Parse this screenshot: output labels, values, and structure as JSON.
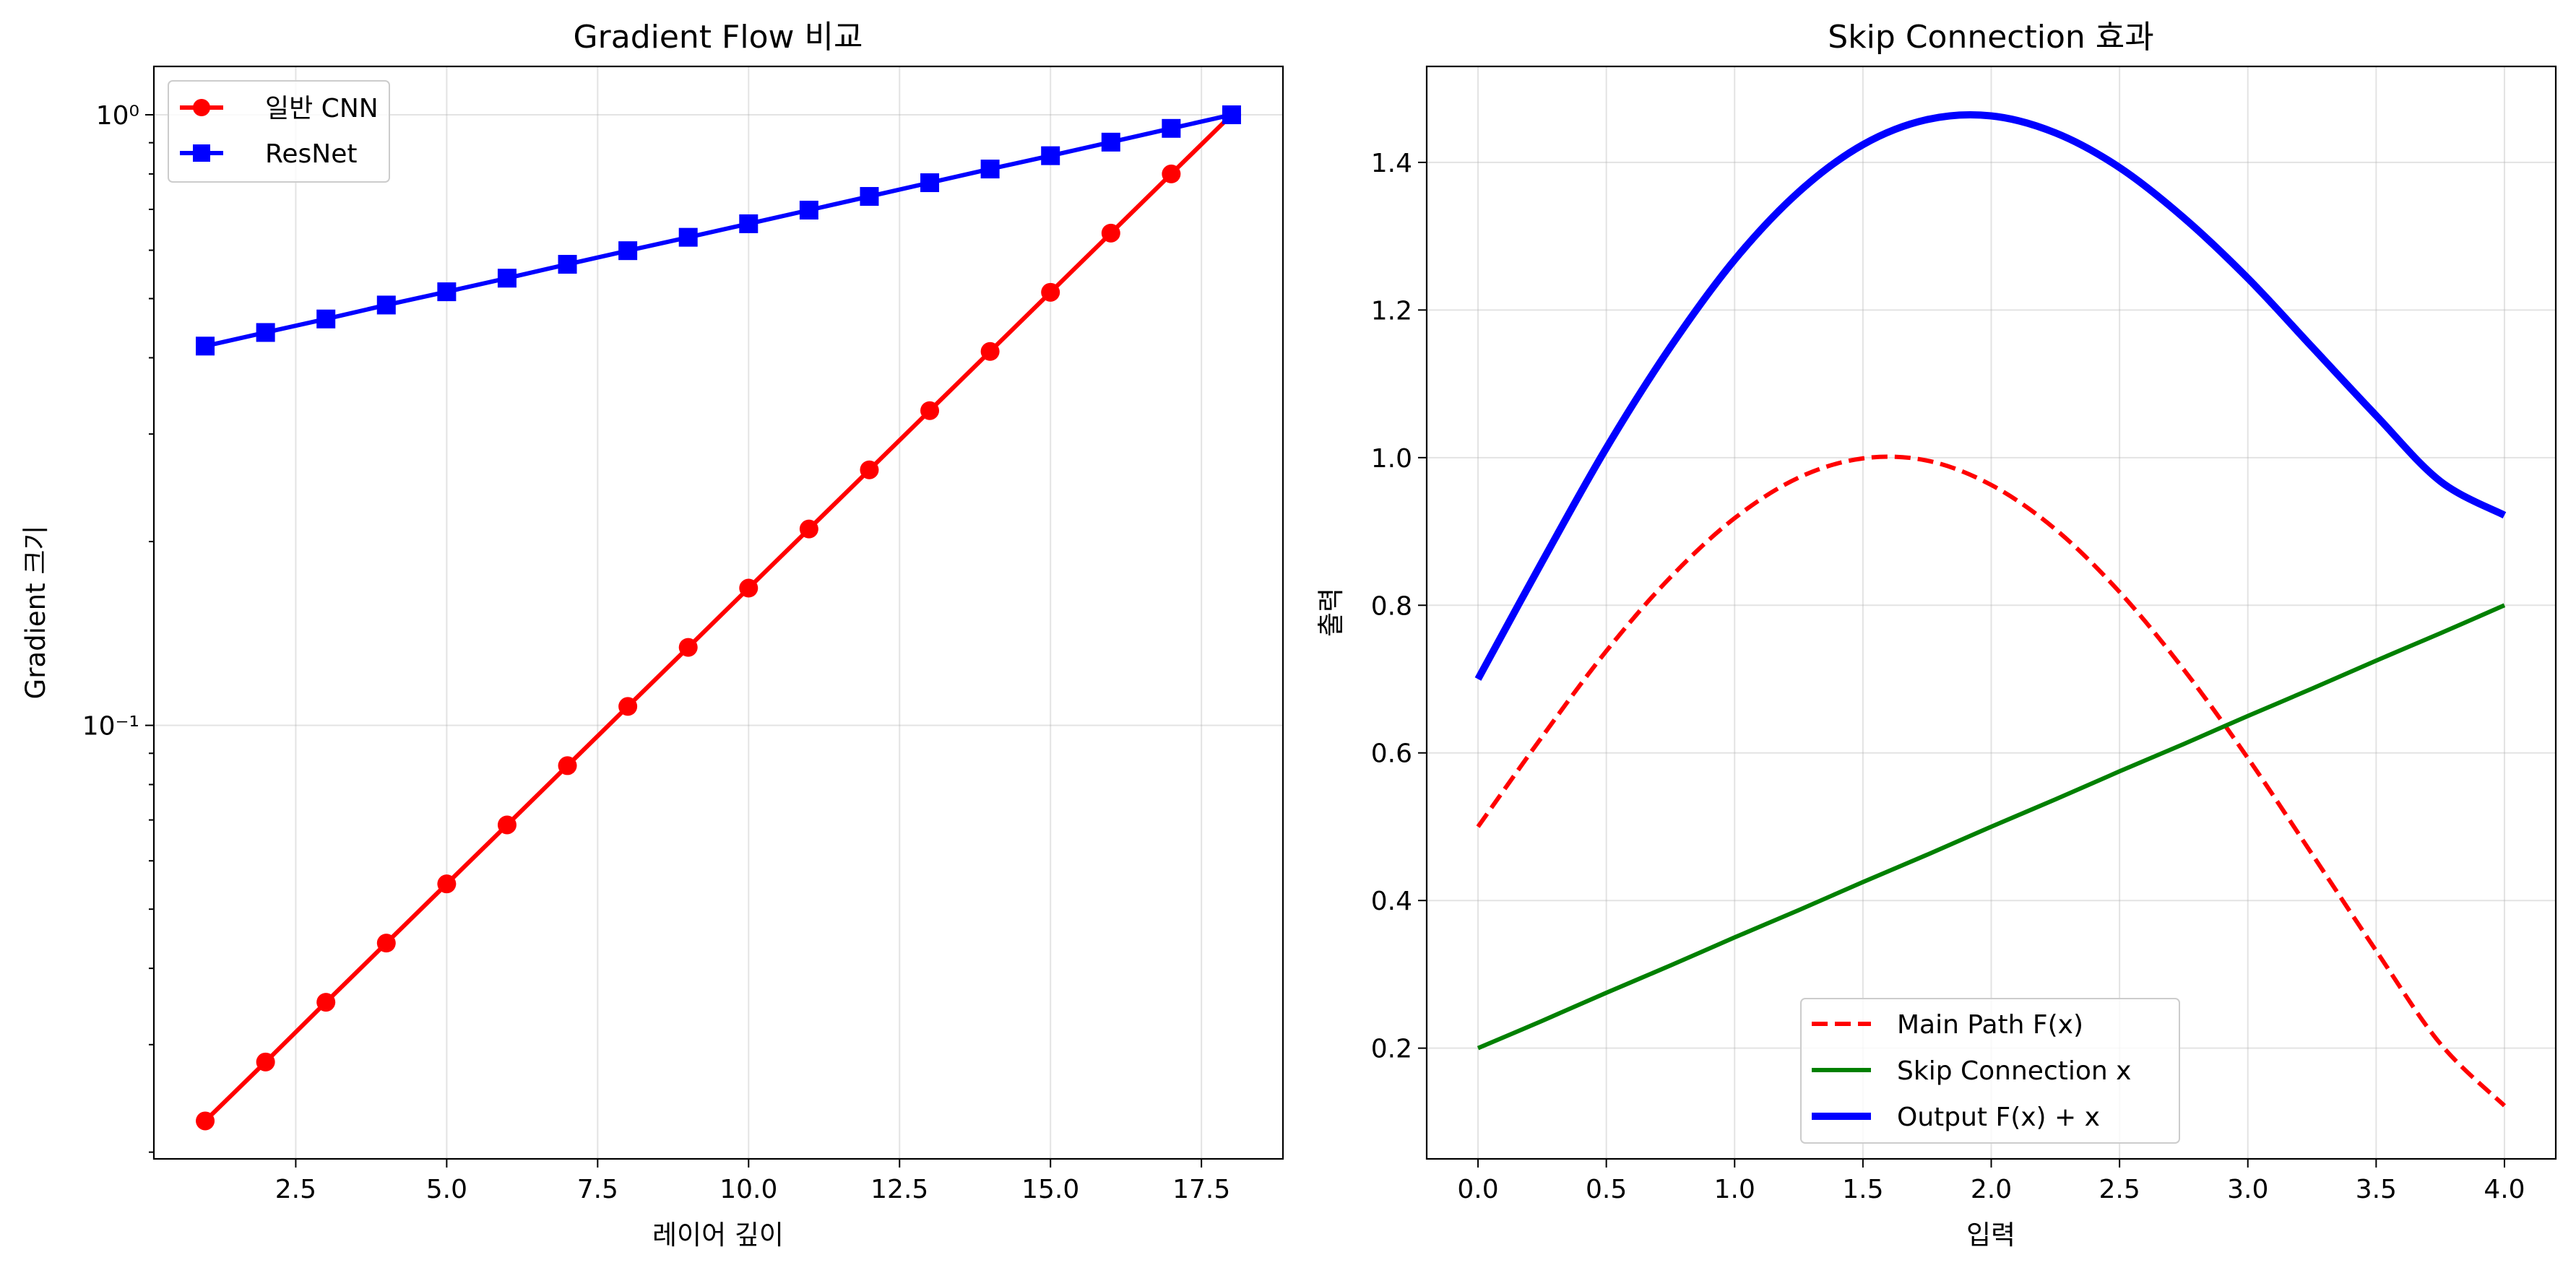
{
  "chart_data": [
    {
      "type": "line",
      "title": "Gradient Flow 비교",
      "xlabel": "레이어 깊이",
      "ylabel": "Gradient 크기",
      "yscale": "log",
      "xlim": [
        0.15,
        18.85
      ],
      "ylim": [
        0.0195,
        1.2
      ],
      "xticks": [
        2.5,
        5.0,
        7.5,
        10.0,
        12.5,
        15.0,
        17.5
      ],
      "xtick_labels": [
        "2.5",
        "5.0",
        "7.5",
        "10.0",
        "12.5",
        "15.0",
        "17.5"
      ],
      "yticks": [
        0.1,
        1.0
      ],
      "ytick_labels": [
        "10⁻¹",
        "10⁰"
      ],
      "grid": true,
      "legend_position": "upper-left",
      "x": [
        1,
        2,
        3,
        4,
        5,
        6,
        7,
        8,
        9,
        10,
        11,
        12,
        13,
        14,
        15,
        16,
        17,
        18
      ],
      "series": [
        {
          "name": "일반 CNN",
          "color": "#ff0000",
          "marker": "circle",
          "values": [
            0.0225,
            0.0281,
            0.0352,
            0.044,
            0.055,
            0.0687,
            0.0859,
            0.1074,
            0.1342,
            0.1678,
            0.2097,
            0.2621,
            0.3277,
            0.4096,
            0.512,
            0.64,
            0.8,
            1.0
          ]
        },
        {
          "name": "ResNet",
          "color": "#0000ff",
          "marker": "square",
          "values": [
            0.418,
            0.44,
            0.463,
            0.488,
            0.513,
            0.54,
            0.569,
            0.599,
            0.63,
            0.663,
            0.698,
            0.735,
            0.774,
            0.815,
            0.857,
            0.902,
            0.95,
            1.0
          ]
        }
      ]
    },
    {
      "type": "line",
      "title": "Skip Connection 효과",
      "xlabel": "입력",
      "ylabel": "출력",
      "xlim": [
        -0.2,
        4.2
      ],
      "ylim": [
        0.05,
        1.53
      ],
      "xticks": [
        0.0,
        0.5,
        1.0,
        1.5,
        2.0,
        2.5,
        3.0,
        3.5,
        4.0
      ],
      "xtick_labels": [
        "0.0",
        "0.5",
        "1.0",
        "1.5",
        "2.0",
        "2.5",
        "3.0",
        "3.5",
        "4.0"
      ],
      "yticks": [
        0.2,
        0.4,
        0.6,
        0.8,
        1.0,
        1.2,
        1.4
      ],
      "ytick_labels": [
        "0.2",
        "0.4",
        "0.6",
        "0.8",
        "1.0",
        "1.2",
        "1.4"
      ],
      "grid": true,
      "legend_position": "lower-center",
      "x": [
        0.0,
        0.25,
        0.5,
        0.75,
        1.0,
        1.25,
        1.5,
        1.75,
        2.0,
        2.25,
        2.5,
        2.75,
        3.0,
        3.25,
        3.5,
        3.75,
        4.0
      ],
      "series": [
        {
          "name": "Main Path F(x)",
          "color": "#ff0000",
          "style": "dashed",
          "values": [
            0.5,
            0.622,
            0.738,
            0.838,
            0.918,
            0.973,
            0.999,
            0.996,
            0.963,
            0.903,
            0.818,
            0.713,
            0.593,
            0.463,
            0.332,
            0.206,
            0.122
          ]
        },
        {
          "name": "Skip Connection x",
          "color": "#008000",
          "style": "solid",
          "values": [
            0.2,
            0.237,
            0.275,
            0.312,
            0.35,
            0.387,
            0.425,
            0.462,
            0.5,
            0.537,
            0.575,
            0.612,
            0.65,
            0.687,
            0.725,
            0.762,
            0.8
          ]
        },
        {
          "name": "Output F(x) + x",
          "color": "#0000ff",
          "style": "thick",
          "values": [
            0.7,
            0.859,
            1.013,
            1.15,
            1.268,
            1.36,
            1.424,
            1.458,
            1.463,
            1.44,
            1.393,
            1.325,
            1.243,
            1.15,
            1.057,
            0.968,
            0.922
          ]
        }
      ]
    }
  ]
}
